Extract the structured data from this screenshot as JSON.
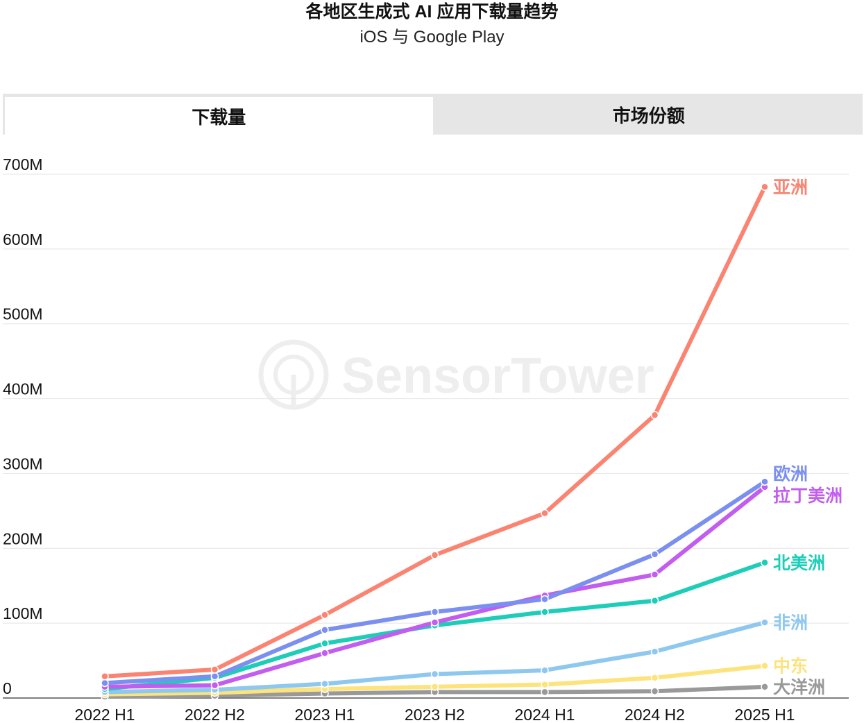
{
  "chart_data": {
    "type": "line",
    "title": "各地区生成式 AI 应用下载量趋势",
    "subtitle": "iOS 与 Google Play",
    "tabs": [
      "下载量",
      "市场份额"
    ],
    "active_tab": 0,
    "watermark": "SensorTower",
    "categories": [
      "2022 H1",
      "2022 H2",
      "2023 H1",
      "2023 H2",
      "2024 H1",
      "2024 H2",
      "2025 H1"
    ],
    "y_ticks": [
      {
        "value": 0,
        "label": "0"
      },
      {
        "value": 100,
        "label": "100M"
      },
      {
        "value": 200,
        "label": "200M"
      },
      {
        "value": 300,
        "label": "300M"
      },
      {
        "value": 400,
        "label": "400M"
      },
      {
        "value": 500,
        "label": "500M"
      },
      {
        "value": 600,
        "label": "600M"
      },
      {
        "value": 700,
        "label": "700M"
      }
    ],
    "ylim": [
      0,
      700
    ],
    "y_unit": "M",
    "grid": true,
    "series": [
      {
        "name": "大洋洲",
        "color": "#999999",
        "values": [
          2,
          3,
          6,
          8,
          8,
          9,
          15
        ]
      },
      {
        "name": "中东",
        "color": "#fde37c",
        "values": [
          5,
          7,
          12,
          15,
          18,
          27,
          43
        ]
      },
      {
        "name": "非洲",
        "color": "#8ec8ef",
        "values": [
          8,
          11,
          19,
          32,
          37,
          62,
          101
        ]
      },
      {
        "name": "北美洲",
        "color": "#1dcdb8",
        "values": [
          12,
          27,
          73,
          97,
          115,
          130,
          181
        ]
      },
      {
        "name": "拉丁美洲",
        "color": "#c25df0",
        "values": [
          15,
          17,
          60,
          101,
          137,
          165,
          282
        ]
      },
      {
        "name": "欧洲",
        "color": "#7b8ff0",
        "values": [
          20,
          29,
          91,
          115,
          132,
          192,
          289
        ]
      },
      {
        "name": "亚洲",
        "color": "#fa8471",
        "values": [
          29,
          38,
          111,
          191,
          247,
          378,
          683
        ]
      }
    ]
  }
}
